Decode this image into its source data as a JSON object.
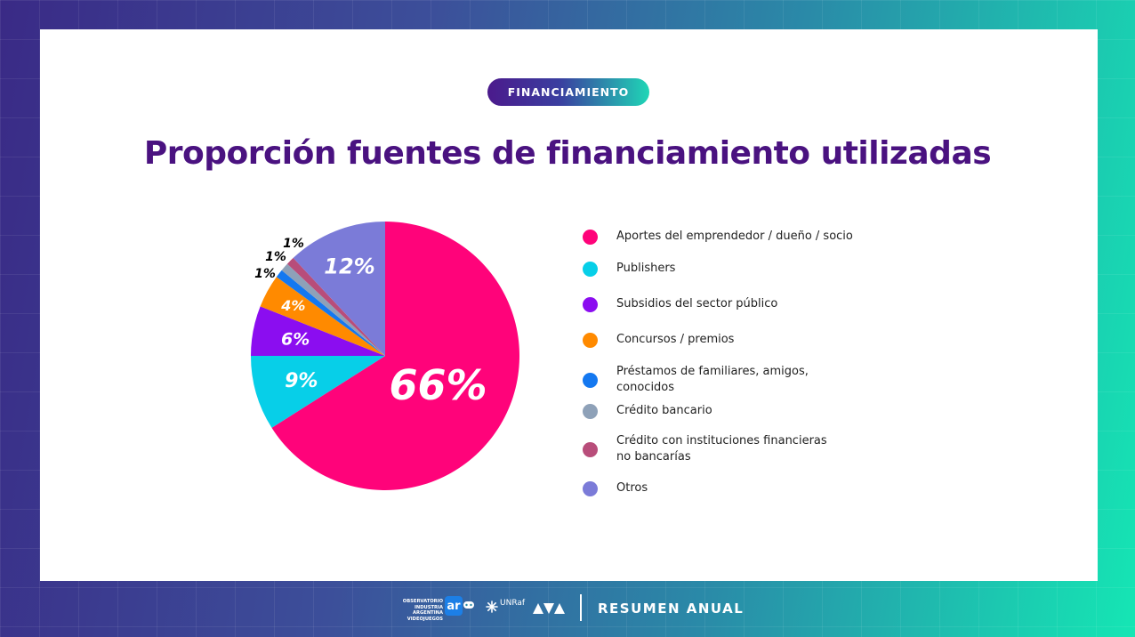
{
  "badge": "FINANCIAMIENTO",
  "title": "Proporción fuentes de financiamiento utilizadas",
  "chart_data": {
    "type": "pie",
    "title": "Proporción fuentes de financiamiento utilizadas",
    "categories": [
      "Aportes del emprendedor / dueño / socio",
      "Publishers",
      "Subsidios del sector público",
      "Concursos / premios",
      "Préstamos de familiares, amigos, conocidos",
      "Crédito bancario",
      "Crédito con instituciones financieras no bancarías",
      "Otros"
    ],
    "values": [
      66,
      9,
      6,
      4,
      1,
      1,
      1,
      12
    ],
    "labels": [
      "66%",
      "9%",
      "6%",
      "4%",
      "1%",
      "1%",
      "1%",
      "12%"
    ],
    "colors": [
      "#ff037a",
      "#07cfe8",
      "#8b0df0",
      "#ff8a00",
      "#1478f0",
      "#8ea1b8",
      "#b84d7a",
      "#7b7bd8"
    ],
    "legend_position": "right"
  },
  "legend": [
    {
      "label": "Aportes del emprendedor / dueño / socio",
      "color": "#ff037a"
    },
    {
      "label": "Publishers",
      "color": "#07cfe8"
    },
    {
      "label": "Subsidios del sector público",
      "color": "#8b0df0"
    },
    {
      "label": "Concursos / premios",
      "color": "#ff8a00"
    },
    {
      "label": "Préstamos de familiares, amigos, conocidos",
      "color": "#1478f0"
    },
    {
      "label": "Crédito bancario",
      "color": "#8ea1b8"
    },
    {
      "label": "Crédito con instituciones financieras no bancarías",
      "color": "#b84d7a"
    },
    {
      "label": "Otros",
      "color": "#7b7bd8"
    }
  ],
  "footer": {
    "logo_line1": "OBSERVATORIO",
    "logo_line2": "INDUSTRIA ARGENTINA",
    "logo_line3": "VIDEOJUEGOS",
    "logo_ar": "ar",
    "logo_unraf": "UNRaf",
    "text": "RESUMEN ANUAL"
  }
}
